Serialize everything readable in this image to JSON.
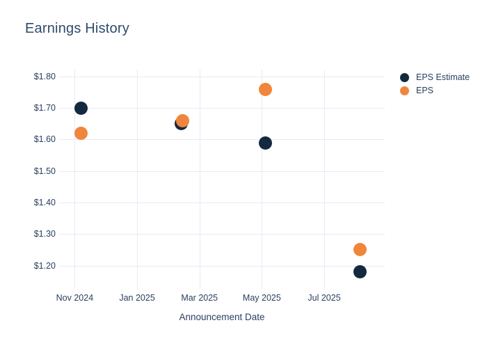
{
  "chart_data": {
    "type": "scatter",
    "title": "Earnings History",
    "xlabel": "Announcement Date",
    "ylabel": "",
    "grid": true,
    "legend_position": "right",
    "background_color": "#ffffff",
    "gridline_color": "#e7eaf3",
    "text_color": "#2a3f5f",
    "title_color": "#2e4a6b",
    "marker_size": 19,
    "legend_marker_size": 13,
    "x_unit": "months_after_Nov_2024",
    "xlim": [
      -0.5,
      9.94
    ],
    "ylim": [
      1.126,
      1.822
    ],
    "x_ticks": [
      {
        "label": "Nov 2024",
        "x": 0
      },
      {
        "label": "Jan 2025",
        "x": 2
      },
      {
        "label": "Mar 2025",
        "x": 4
      },
      {
        "label": "May 2025",
        "x": 6
      },
      {
        "label": "Jul 2025",
        "x": 8
      }
    ],
    "y_ticks": [
      {
        "label": "$1.80",
        "value": 1.8
      },
      {
        "label": "$1.70",
        "value": 1.7
      },
      {
        "label": "$1.60",
        "value": 1.6
      },
      {
        "label": "$1.50",
        "value": 1.5
      },
      {
        "label": "$1.40",
        "value": 1.4
      },
      {
        "label": "$1.30",
        "value": 1.3
      },
      {
        "label": "$1.20",
        "value": 1.2
      }
    ],
    "series": [
      {
        "name": "EPS Estimate",
        "color": "#14293f",
        "points": [
          {
            "x": 0.2,
            "approx_date": "Nov 2024",
            "y": 1.7
          },
          {
            "x": 3.41,
            "approx_date": "Feb 2025",
            "y": 1.65
          },
          {
            "x": 6.12,
            "approx_date": "May 2025",
            "y": 1.59
          },
          {
            "x": 9.15,
            "approx_date": "Aug 2025",
            "y": 1.18
          }
        ]
      },
      {
        "name": "EPS",
        "color": "#f0863c",
        "points": [
          {
            "x": 0.2,
            "approx_date": "Nov 2024",
            "y": 1.62
          },
          {
            "x": 3.45,
            "approx_date": "Feb 2025",
            "y": 1.66
          },
          {
            "x": 6.12,
            "approx_date": "May 2025",
            "y": 1.76
          },
          {
            "x": 9.15,
            "approx_date": "Aug 2025",
            "y": 1.25
          }
        ]
      }
    ]
  }
}
